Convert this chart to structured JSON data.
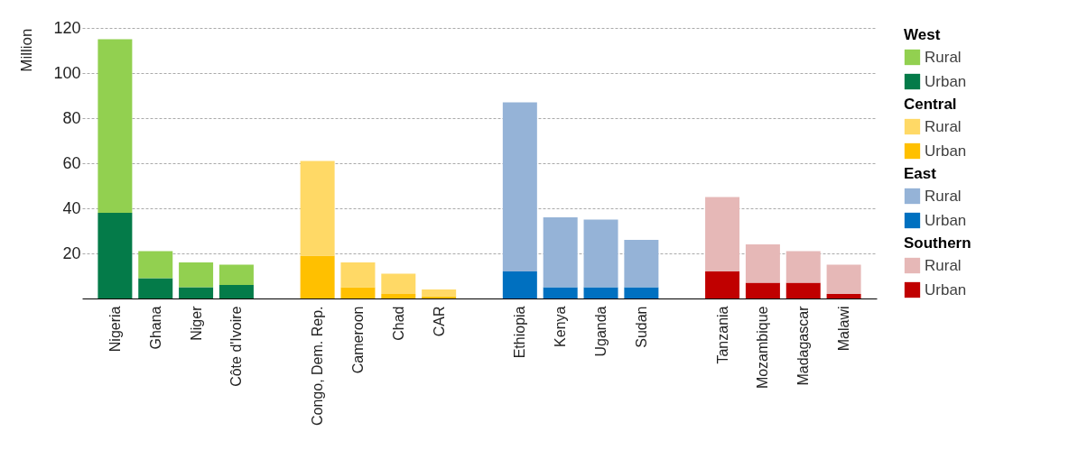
{
  "chart_data": {
    "type": "bar",
    "stacked": true,
    "ylabel": "Million",
    "categories": [
      "Nigeria",
      "Ghana",
      "Niger",
      "Côte d'Ivoire",
      "Congo, Dem. Rep.",
      "Cameroon",
      "Chad",
      "CAR",
      "Ethiopia",
      "Kenya",
      "Uganda",
      "Sudan",
      "Tanzania",
      "Mozambique",
      "Madagascar",
      "Malawi"
    ],
    "series": [
      {
        "name": "Urban",
        "color": "#047b49",
        "values": [
          38,
          9,
          5,
          6,
          null,
          null,
          null,
          null,
          null,
          null,
          null,
          null,
          null,
          null,
          null,
          null
        ]
      },
      {
        "name": "Rural",
        "color": "#92d050",
        "values": [
          77,
          12,
          11,
          9,
          null,
          null,
          null,
          null,
          null,
          null,
          null,
          null,
          null,
          null,
          null,
          null
        ]
      },
      {
        "name": "Urban",
        "color": "#ffc000",
        "values": [
          null,
          null,
          null,
          null,
          19,
          5,
          2,
          1,
          null,
          null,
          null,
          null,
          null,
          null,
          null,
          null
        ]
      },
      {
        "name": "Rural",
        "color": "#ffd966",
        "values": [
          null,
          null,
          null,
          null,
          42,
          11,
          9,
          3,
          null,
          null,
          null,
          null,
          null,
          null,
          null,
          null
        ]
      },
      {
        "name": "Urban",
        "color": "#0070c0",
        "values": [
          null,
          null,
          null,
          null,
          null,
          null,
          null,
          null,
          12,
          5,
          5,
          5,
          null,
          null,
          null,
          null
        ]
      },
      {
        "name": "Rural",
        "color": "#95b3d7",
        "values": [
          null,
          null,
          null,
          null,
          null,
          null,
          null,
          null,
          75,
          31,
          30,
          21,
          null,
          null,
          null,
          null
        ]
      },
      {
        "name": "Urban",
        "color": "#c00000",
        "values": [
          null,
          null,
          null,
          null,
          null,
          null,
          null,
          null,
          null,
          null,
          null,
          null,
          12,
          7,
          7,
          2
        ]
      },
      {
        "name": "Rural",
        "color": "#e6b8b7",
        "values": [
          null,
          null,
          null,
          null,
          null,
          null,
          null,
          null,
          null,
          null,
          null,
          null,
          33,
          17,
          14,
          13
        ]
      }
    ],
    "annotations": [
      "West",
      "Central",
      "East",
      "Southern"
    ],
    "ylim": [
      0,
      120
    ],
    "yticks": [
      20,
      40,
      60,
      80,
      100,
      120
    ],
    "grid": "y",
    "legend": "right"
  }
}
